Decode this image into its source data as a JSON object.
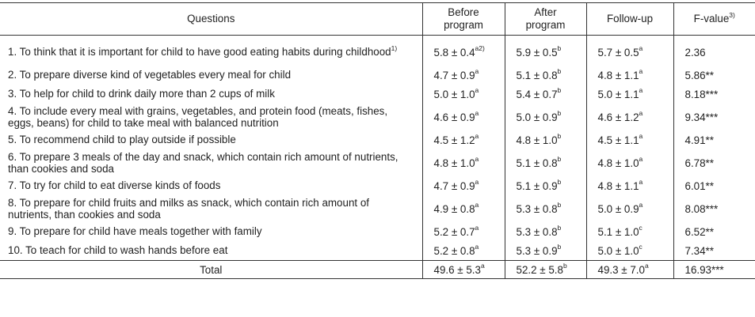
{
  "headers": {
    "questions": "Questions",
    "before_line1": "Before",
    "before_line2": "program",
    "after_line1": "After",
    "after_line2": "program",
    "followup": "Follow-up",
    "fvalue": "F-value",
    "fvalue_note": "3)"
  },
  "rows": [
    {
      "question": "1. To think that it is important for child to have good eating habits during childhood",
      "note": "1)",
      "before": "5.8 ± 0.4",
      "before_sup": "a2)",
      "after": "5.9 ± 0.5",
      "after_sup": "b",
      "follow": "5.7 ± 0.5",
      "follow_sup": "a",
      "f": "2.36"
    },
    {
      "question": "2. To prepare diverse kind of vegetables every meal for child",
      "before": "4.7 ± 0.9",
      "before_sup": "a",
      "after": "5.1 ± 0.8",
      "after_sup": "b",
      "follow": "4.8 ± 1.1",
      "follow_sup": "a",
      "f": "5.86**"
    },
    {
      "question": "3. To help for child to drink daily more than 2 cups of milk",
      "before": "5.0 ± 1.0",
      "before_sup": "a",
      "after": "5.4 ± 0.7",
      "after_sup": "b",
      "follow": "5.0 ± 1.1",
      "follow_sup": "a",
      "f": "8.18***"
    },
    {
      "question": "4. To include every meal with grains, vegetables, and protein food (meats, fishes, eggs, beans) for child to take meal with balanced nutrition",
      "before": "4.6 ± 0.9",
      "before_sup": "a",
      "after": "5.0 ± 0.9",
      "after_sup": "b",
      "follow": "4.6 ± 1.2",
      "follow_sup": "a",
      "f": "9.34***"
    },
    {
      "question": "5. To recommend child to play outside if possible",
      "before": "4.5 ± 1.2",
      "before_sup": "a",
      "after": "4.8 ± 1.0",
      "after_sup": "b",
      "follow": "4.5 ± 1.1",
      "follow_sup": "a",
      "f": "4.91**"
    },
    {
      "question": "6. To prepare 3 meals of the day and snack, which contain rich amount of nutrients, than cookies and soda",
      "before": "4.8 ± 1.0",
      "before_sup": "a",
      "after": "5.1 ± 0.8",
      "after_sup": "b",
      "follow": "4.8 ± 1.0",
      "follow_sup": "a",
      "f": "6.78**"
    },
    {
      "question": "7. To try for child to eat diverse kinds of foods",
      "before": "4.7 ± 0.9",
      "before_sup": "a",
      "after": "5.1 ± 0.9",
      "after_sup": "b",
      "follow": "4.8 ± 1.1",
      "follow_sup": "a",
      "f": "6.01**"
    },
    {
      "question": "8. To prepare for child fruits and milks as snack, which contain rich amount of nutrients, than cookies and soda",
      "before": "4.9 ± 0.8",
      "before_sup": "a",
      "after": "5.3 ± 0.8",
      "after_sup": "b",
      "follow": "5.0 ± 0.9",
      "follow_sup": "a",
      "f": "8.08***"
    },
    {
      "question": "9. To prepare for child have meals together with family",
      "before": "5.2 ± 0.7",
      "before_sup": "a",
      "after": "5.3 ± 0.8",
      "after_sup": "b",
      "follow": "5.1 ± 1.0",
      "follow_sup": "c",
      "f": "6.52**"
    },
    {
      "question": "10. To teach for child to wash hands before eat",
      "before": "5.2 ± 0.8",
      "before_sup": "a",
      "after": "5.3 ± 0.9",
      "after_sup": "b",
      "follow": "5.0 ± 1.0",
      "follow_sup": "c",
      "f": "7.34**"
    }
  ],
  "total": {
    "label": "Total",
    "before": "49.6 ± 5.3",
    "before_sup": "a",
    "after": "52.2 ± 5.8",
    "after_sup": "b",
    "follow": "49.3 ± 7.0",
    "follow_sup": "a",
    "f": "16.93***"
  }
}
